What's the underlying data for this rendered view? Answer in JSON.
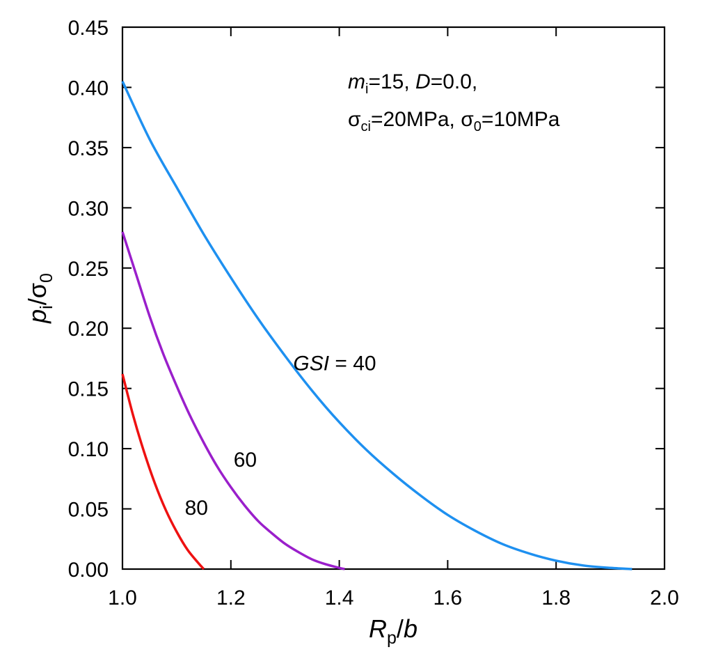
{
  "chart_data": {
    "type": "line",
    "xlabel": {
      "main": "R",
      "sub": "p",
      "rest": "/",
      "ital": "b"
    },
    "ylabel": {
      "main": "p",
      "sub": "i",
      "rest": "/",
      "sigma": "σ",
      "sigmasub": "0"
    },
    "xlim": [
      1.0,
      2.0
    ],
    "ylim": [
      0.0,
      0.45
    ],
    "x_ticks": [
      1.0,
      1.2,
      1.4,
      1.6,
      1.8,
      2.0
    ],
    "x_tick_labels": [
      "1.0",
      "1.2",
      "1.4",
      "1.6",
      "1.8",
      "2.0"
    ],
    "y_ticks": [
      0.0,
      0.05,
      0.1,
      0.15,
      0.2,
      0.25,
      0.3,
      0.35,
      0.4,
      0.45
    ],
    "y_tick_labels": [
      "0.00",
      "0.05",
      "0.10",
      "0.15",
      "0.20",
      "0.25",
      "0.30",
      "0.35",
      "0.40",
      "0.45"
    ],
    "grid": false,
    "legend": "none",
    "annotation": {
      "line1": {
        "m": "m",
        "msub": "i",
        "a": "=15, ",
        "D": "D",
        "b": "=0.0,"
      },
      "line2": {
        "s1": "σ",
        "s1sub": "ci",
        "a": "=20MPa, ",
        "s2": "σ",
        "s2sub": "0",
        "b": "=10MPa"
      }
    },
    "series": [
      {
        "label": "GSI = 40",
        "label_ital": "GSI",
        "label_rest": " = 40",
        "color": "#1E90F0",
        "x": [
          1.0,
          1.05,
          1.1,
          1.15,
          1.2,
          1.25,
          1.3,
          1.35,
          1.4,
          1.45,
          1.5,
          1.55,
          1.6,
          1.65,
          1.7,
          1.75,
          1.8,
          1.85,
          1.9,
          1.94
        ],
        "y": [
          0.405,
          0.357,
          0.317,
          0.278,
          0.242,
          0.208,
          0.177,
          0.148,
          0.122,
          0.099,
          0.079,
          0.061,
          0.045,
          0.032,
          0.021,
          0.013,
          0.007,
          0.003,
          0.001,
          0.0
        ]
      },
      {
        "label": "60",
        "color": "#9A1FCB",
        "x": [
          1.0,
          1.025,
          1.05,
          1.075,
          1.1,
          1.125,
          1.15,
          1.175,
          1.2,
          1.225,
          1.25,
          1.275,
          1.3,
          1.325,
          1.35,
          1.375,
          1.4,
          1.41
        ],
        "y": [
          0.28,
          0.245,
          0.21,
          0.179,
          0.152,
          0.127,
          0.105,
          0.085,
          0.068,
          0.053,
          0.04,
          0.03,
          0.021,
          0.014,
          0.008,
          0.004,
          0.001,
          0.0
        ]
      },
      {
        "label": "80",
        "color": "#EE1111",
        "x": [
          1.0,
          1.02,
          1.04,
          1.06,
          1.08,
          1.1,
          1.12,
          1.14,
          1.15
        ],
        "y": [
          0.162,
          0.127,
          0.097,
          0.071,
          0.049,
          0.031,
          0.016,
          0.005,
          0.0
        ]
      }
    ]
  }
}
